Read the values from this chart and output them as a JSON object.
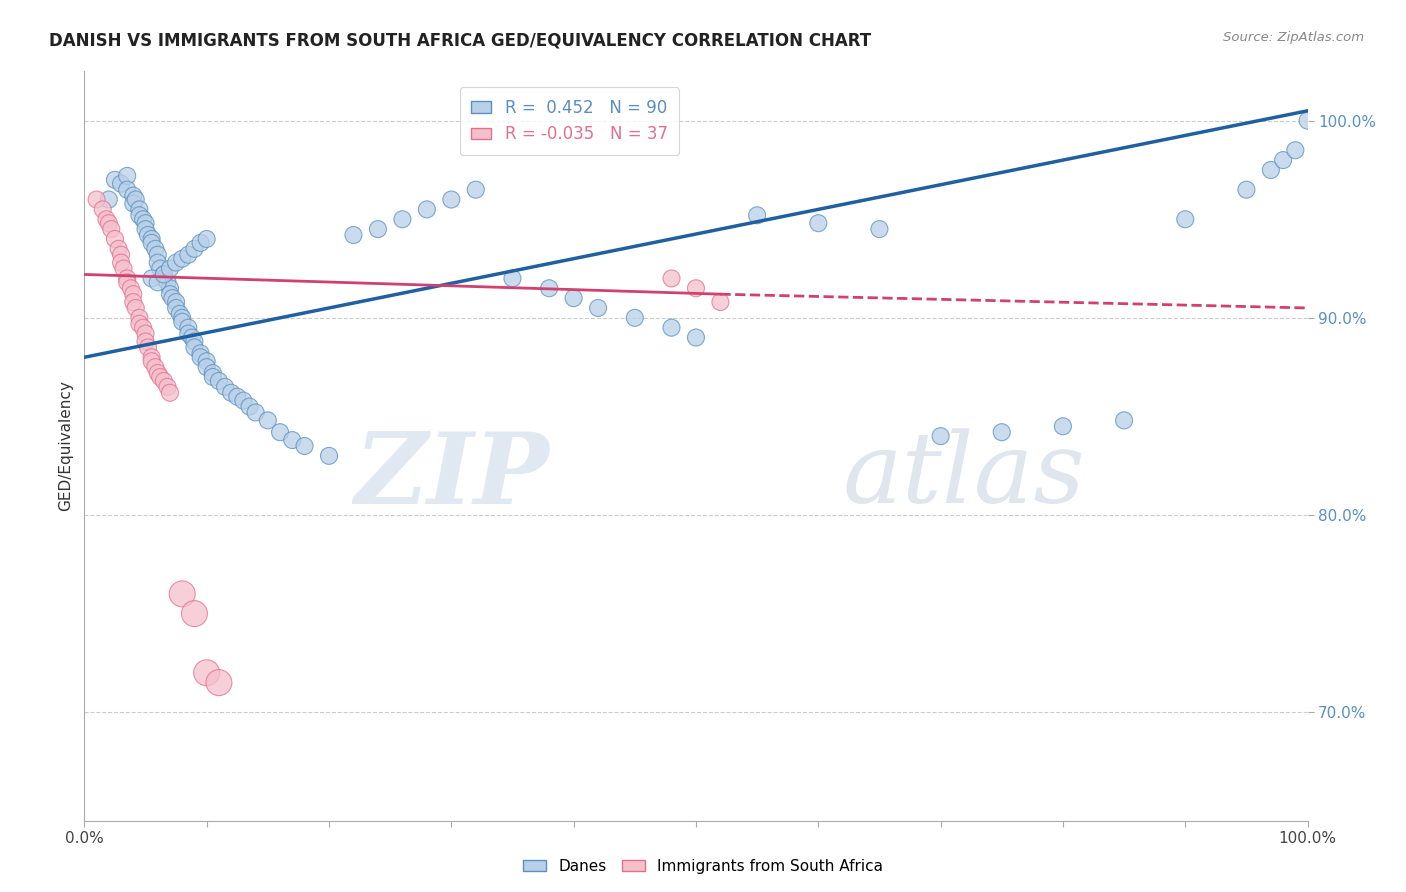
{
  "title": "DANISH VS IMMIGRANTS FROM SOUTH AFRICA GED/EQUIVALENCY CORRELATION CHART",
  "source": "Source: ZipAtlas.com",
  "ylabel": "GED/Equivalency",
  "xlim": [
    0.0,
    1.0
  ],
  "ylim": [
    0.645,
    1.025
  ],
  "yticks": [
    0.7,
    0.8,
    0.9,
    1.0
  ],
  "ytick_labels": [
    "70.0%",
    "80.0%",
    "90.0%",
    "100.0%"
  ],
  "xticks": [
    0.0,
    0.1,
    0.2,
    0.3,
    0.4,
    0.5,
    0.6,
    0.7,
    0.8,
    0.9,
    1.0
  ],
  "xtick_labels": [
    "0.0%",
    "",
    "",
    "",
    "",
    "",
    "",
    "",
    "",
    "",
    "100.0%"
  ],
  "blue_R": 0.452,
  "blue_N": 90,
  "pink_R": -0.035,
  "pink_N": 37,
  "blue_color": "#b8d0e8",
  "blue_edge_color": "#5a8fc0",
  "pink_color": "#f5c0cc",
  "pink_edge_color": "#e07090",
  "blue_label": "Danes",
  "pink_label": "Immigrants from South Africa",
  "blue_trend_x0": 0.0,
  "blue_trend_y0": 0.88,
  "blue_trend_x1": 1.0,
  "blue_trend_y1": 1.005,
  "pink_trend_x0": 0.0,
  "pink_trend_y0": 0.922,
  "pink_trend_x1": 0.52,
  "pink_trend_y1": 0.912,
  "pink_trend_dash_x0": 0.52,
  "pink_trend_dash_y0": 0.912,
  "pink_trend_dash_x1": 1.0,
  "pink_trend_dash_y1": 0.905,
  "blue_line_color": "#2060a0",
  "pink_line_color": "#d04070",
  "watermark_zip": "ZIP",
  "watermark_atlas": "atlas",
  "grid_color": "#cccccc",
  "background_color": "#ffffff",
  "blue_x": [
    0.02,
    0.025,
    0.03,
    0.035,
    0.035,
    0.04,
    0.04,
    0.042,
    0.045,
    0.045,
    0.048,
    0.05,
    0.05,
    0.052,
    0.055,
    0.055,
    0.058,
    0.06,
    0.06,
    0.062,
    0.065,
    0.065,
    0.068,
    0.07,
    0.07,
    0.072,
    0.075,
    0.075,
    0.078,
    0.08,
    0.08,
    0.085,
    0.085,
    0.088,
    0.09,
    0.09,
    0.095,
    0.095,
    0.1,
    0.1,
    0.105,
    0.105,
    0.11,
    0.115,
    0.12,
    0.125,
    0.13,
    0.135,
    0.14,
    0.15,
    0.16,
    0.17,
    0.18,
    0.2,
    0.22,
    0.24,
    0.26,
    0.28,
    0.3,
    0.32,
    0.35,
    0.38,
    0.4,
    0.42,
    0.45,
    0.48,
    0.5,
    0.55,
    0.6,
    0.65,
    0.7,
    0.75,
    0.8,
    0.85,
    0.9,
    0.95,
    0.97,
    0.98,
    0.99,
    1.0,
    0.055,
    0.06,
    0.065,
    0.07,
    0.075,
    0.08,
    0.085,
    0.09,
    0.095,
    0.1
  ],
  "blue_y": [
    0.96,
    0.97,
    0.968,
    0.972,
    0.965,
    0.962,
    0.958,
    0.96,
    0.955,
    0.952,
    0.95,
    0.948,
    0.945,
    0.942,
    0.94,
    0.938,
    0.935,
    0.932,
    0.928,
    0.925,
    0.922,
    0.92,
    0.918,
    0.915,
    0.912,
    0.91,
    0.908,
    0.905,
    0.902,
    0.9,
    0.898,
    0.895,
    0.892,
    0.89,
    0.888,
    0.885,
    0.882,
    0.88,
    0.878,
    0.875,
    0.872,
    0.87,
    0.868,
    0.865,
    0.862,
    0.86,
    0.858,
    0.855,
    0.852,
    0.848,
    0.842,
    0.838,
    0.835,
    0.83,
    0.942,
    0.945,
    0.95,
    0.955,
    0.96,
    0.965,
    0.92,
    0.915,
    0.91,
    0.905,
    0.9,
    0.895,
    0.89,
    0.952,
    0.948,
    0.945,
    0.84,
    0.842,
    0.845,
    0.848,
    0.95,
    0.965,
    0.975,
    0.98,
    0.985,
    1.0,
    0.92,
    0.918,
    0.922,
    0.925,
    0.928,
    0.93,
    0.932,
    0.935,
    0.938,
    0.94
  ],
  "blue_s": [
    150,
    150,
    150,
    150,
    150,
    150,
    150,
    150,
    150,
    150,
    150,
    150,
    150,
    150,
    150,
    150,
    150,
    150,
    150,
    150,
    150,
    150,
    150,
    150,
    150,
    150,
    150,
    150,
    150,
    150,
    150,
    150,
    150,
    150,
    150,
    150,
    150,
    150,
    150,
    150,
    150,
    150,
    150,
    150,
    150,
    150,
    150,
    150,
    150,
    150,
    150,
    150,
    150,
    150,
    150,
    150,
    150,
    150,
    150,
    150,
    150,
    150,
    150,
    150,
    150,
    150,
    150,
    150,
    150,
    150,
    150,
    150,
    150,
    150,
    150,
    150,
    150,
    150,
    150,
    150,
    150,
    150,
    150,
    150,
    150,
    150,
    150,
    150,
    150,
    150
  ],
  "pink_x": [
    0.01,
    0.015,
    0.018,
    0.02,
    0.022,
    0.025,
    0.028,
    0.03,
    0.03,
    0.032,
    0.035,
    0.035,
    0.038,
    0.04,
    0.04,
    0.042,
    0.045,
    0.045,
    0.048,
    0.05,
    0.05,
    0.052,
    0.055,
    0.055,
    0.058,
    0.06,
    0.062,
    0.065,
    0.068,
    0.07,
    0.08,
    0.09,
    0.1,
    0.11,
    0.48,
    0.5,
    0.52
  ],
  "pink_y": [
    0.96,
    0.955,
    0.95,
    0.948,
    0.945,
    0.94,
    0.935,
    0.932,
    0.928,
    0.925,
    0.92,
    0.918,
    0.915,
    0.912,
    0.908,
    0.905,
    0.9,
    0.897,
    0.895,
    0.892,
    0.888,
    0.885,
    0.88,
    0.878,
    0.875,
    0.872,
    0.87,
    0.868,
    0.865,
    0.862,
    0.76,
    0.75,
    0.72,
    0.715,
    0.92,
    0.915,
    0.908
  ],
  "pink_s": [
    150,
    150,
    150,
    150,
    150,
    150,
    150,
    150,
    150,
    150,
    150,
    150,
    150,
    150,
    150,
    150,
    150,
    150,
    150,
    150,
    150,
    150,
    150,
    150,
    150,
    150,
    150,
    150,
    150,
    150,
    350,
    350,
    350,
    350,
    150,
    150,
    150
  ]
}
